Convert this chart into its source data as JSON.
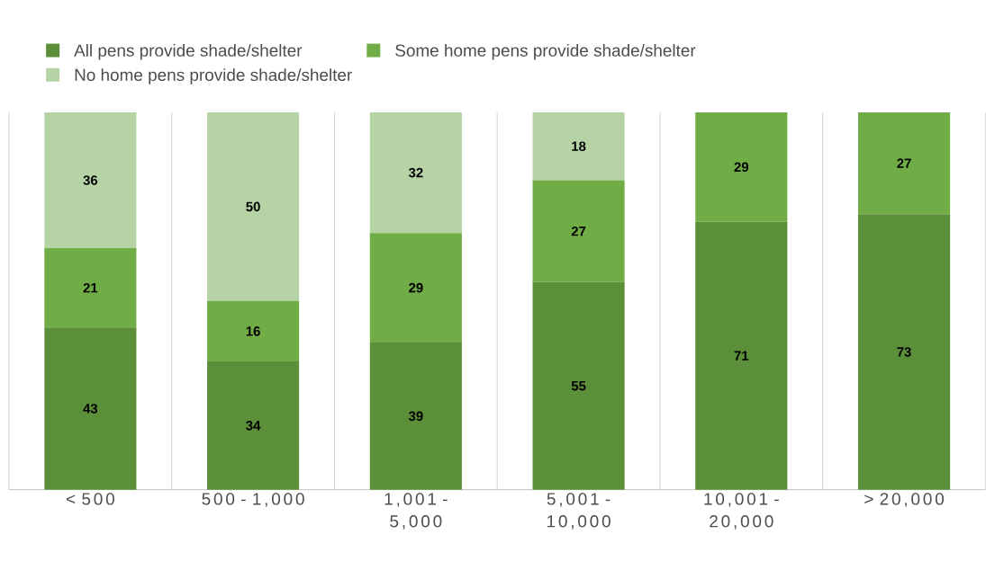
{
  "chart_data": {
    "type": "bar",
    "stacked": true,
    "categories": [
      "< 500",
      "500 - 1,000",
      "1,001 - 5,000",
      "5,001 - 10,000",
      "10,001 - 20,000",
      "> 20,000"
    ],
    "series": [
      {
        "name": "All pens provide shade/shelter",
        "color": "#5b8f3a",
        "values": [
          43,
          34,
          39,
          55,
          71,
          73
        ]
      },
      {
        "name": "Some home pens provide shade/shelter",
        "color": "#70ad47",
        "values": [
          21,
          16,
          29,
          27,
          29,
          27
        ]
      },
      {
        "name": "No home pens provide shade/shelter",
        "color": "#b5d3a5",
        "values": [
          36,
          50,
          32,
          18,
          null,
          null
        ]
      }
    ],
    "tick_labels": "x",
    "data_labels": true,
    "grid": "x",
    "legend": "top left"
  }
}
